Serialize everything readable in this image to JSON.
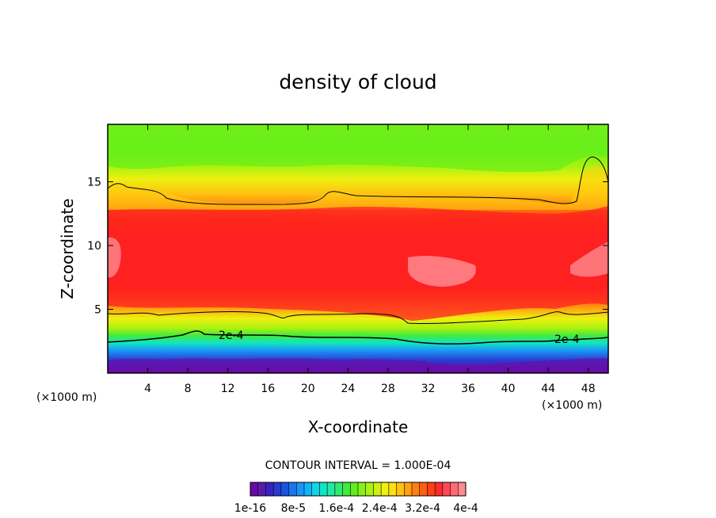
{
  "chart_data": {
    "type": "heatmap",
    "title": "density of cloud",
    "xlabel": "X-coordinate",
    "ylabel": "Z-coordinate",
    "x_unit": "(×1000 m)",
    "y_unit": "(×1000 m)",
    "xlim": [
      0,
      50
    ],
    "ylim": [
      0,
      19.5
    ],
    "x_ticks": [
      4,
      8,
      12,
      16,
      20,
      24,
      28,
      32,
      36,
      40,
      44,
      48
    ],
    "y_ticks": [
      5,
      10,
      15
    ],
    "contour_interval_text": "CONTOUR INTERVAL = 1.000E-04",
    "contour_labels": [
      "2e-4",
      "2e-4"
    ],
    "colorbar": {
      "colors": [
        "#6a0aa8",
        "#5a1ab0",
        "#3a22c0",
        "#2a3ad0",
        "#1a55e0",
        "#1a75ee",
        "#1a95f5",
        "#10b5f5",
        "#10d5e5",
        "#10e5c5",
        "#20eaa0",
        "#30ea70",
        "#40ea40",
        "#60ee20",
        "#88f018",
        "#aaf210",
        "#ccf010",
        "#eef010",
        "#ffe010",
        "#ffc010",
        "#ffa010",
        "#ff8010",
        "#ff6010",
        "#ff4010",
        "#ff2a2a",
        "#ff4a55",
        "#ff6a75",
        "#ff8a90"
      ],
      "tick_labels": [
        "1e-16",
        "8e-5",
        "1.6e-4",
        "2.4e-4",
        "3.2e-4",
        "4e-4"
      ]
    }
  }
}
